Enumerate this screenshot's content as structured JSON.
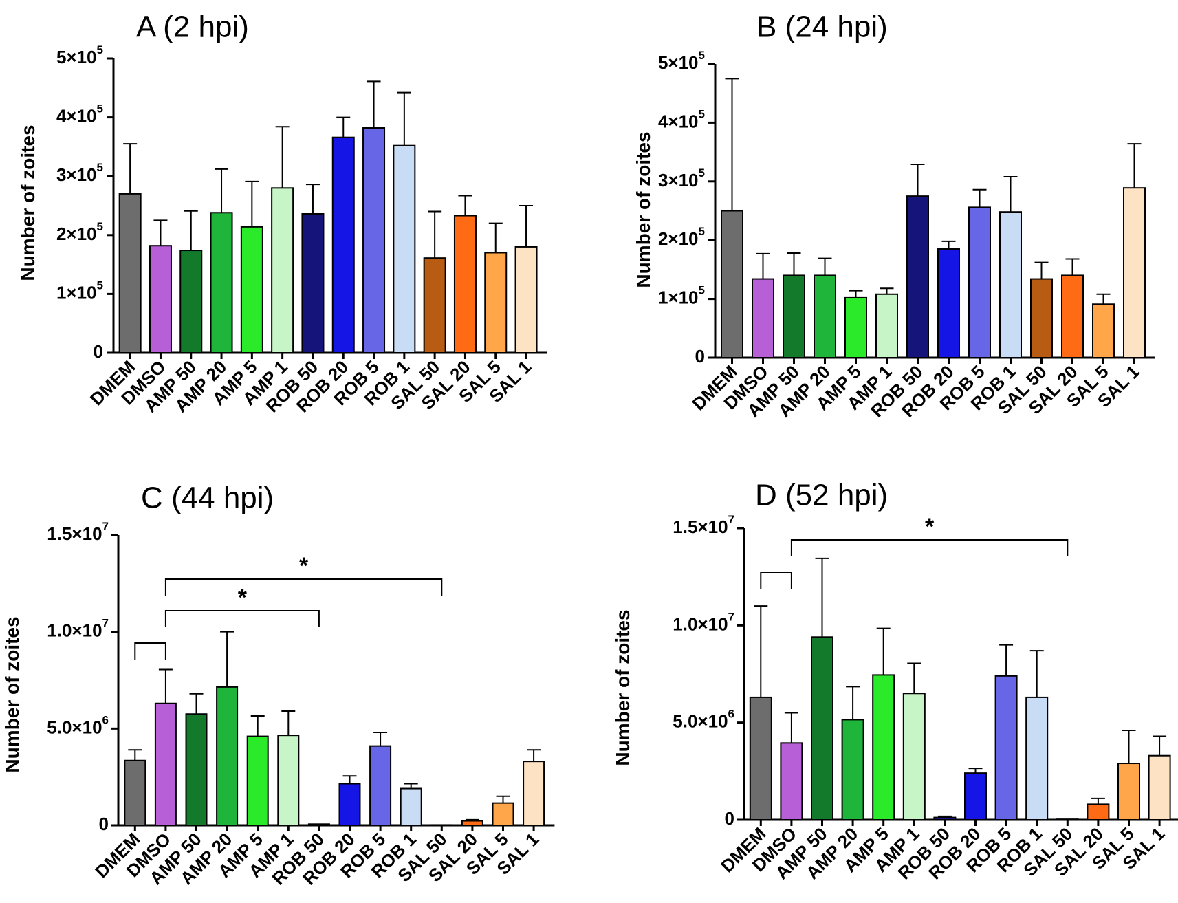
{
  "chart_data": [
    {
      "type": "bar",
      "title": "A (2 hpi)",
      "ylabel": "Number of zoites",
      "ylim": [
        0,
        500000
      ],
      "yticks": [
        0,
        100000,
        200000,
        300000,
        400000,
        500000
      ],
      "ytick_labels": [
        {
          "mantissa": "0",
          "exp": ""
        },
        {
          "mantissa": "1×10",
          "exp": "5"
        },
        {
          "mantissa": "2×10",
          "exp": "5"
        },
        {
          "mantissa": "3×10",
          "exp": "5"
        },
        {
          "mantissa": "4×10",
          "exp": "5"
        },
        {
          "mantissa": "5×10",
          "exp": "5"
        }
      ],
      "categories": [
        "DMEM",
        "DMSO",
        "AMP 50",
        "AMP 20",
        "AMP 5",
        "AMP 1",
        "ROB 50",
        "ROB 20",
        "ROB 5",
        "ROB 1",
        "SAL 50",
        "SAL 20",
        "SAL 5",
        "SAL 1"
      ],
      "values": [
        270000,
        182000,
        174000,
        238000,
        214000,
        280000,
        236000,
        366000,
        382000,
        352000,
        161000,
        233000,
        170000,
        180000
      ],
      "errors": [
        85000,
        43000,
        67000,
        74000,
        77000,
        104000,
        50000,
        34000,
        79000,
        90000,
        79000,
        34000,
        50000,
        70000
      ],
      "colors": [
        "#6d6d6d",
        "#b65fd6",
        "#127a2a",
        "#1fb53a",
        "#2aea2a",
        "#c8f5c8",
        "#14147a",
        "#1515e6",
        "#6666e6",
        "#c8dcf5",
        "#b85c14",
        "#ff6a14",
        "#ffa54a",
        "#fde2c4"
      ],
      "significance": []
    },
    {
      "type": "bar",
      "title": "B (24 hpi)",
      "ylabel": "Number of zoites",
      "ylim": [
        0,
        500000
      ],
      "yticks": [
        0,
        100000,
        200000,
        300000,
        400000,
        500000
      ],
      "ytick_labels": [
        {
          "mantissa": "0",
          "exp": ""
        },
        {
          "mantissa": "1×10",
          "exp": "5"
        },
        {
          "mantissa": "2×10",
          "exp": "5"
        },
        {
          "mantissa": "3×10",
          "exp": "5"
        },
        {
          "mantissa": "4×10",
          "exp": "5"
        },
        {
          "mantissa": "5×10",
          "exp": "5"
        }
      ],
      "categories": [
        "DMEM",
        "DMSO",
        "AMP 50",
        "AMP 20",
        "AMP 5",
        "AMP 1",
        "ROB 50",
        "ROB 20",
        "ROB 5",
        "ROB 1",
        "SAL 50",
        "SAL 20",
        "SAL 5",
        "SAL 1"
      ],
      "values": [
        250000,
        134000,
        140000,
        140000,
        102000,
        108000,
        275000,
        185000,
        256000,
        248000,
        134000,
        140000,
        91000,
        289000
      ],
      "errors": [
        225000,
        43000,
        38000,
        29000,
        12000,
        10000,
        54000,
        13000,
        30000,
        60000,
        28000,
        28000,
        17000,
        75000
      ],
      "colors": [
        "#6d6d6d",
        "#b65fd6",
        "#127a2a",
        "#1fb53a",
        "#2aea2a",
        "#c8f5c8",
        "#14147a",
        "#1515e6",
        "#6666e6",
        "#c8dcf5",
        "#b85c14",
        "#ff6a14",
        "#ffa54a",
        "#fde2c4"
      ],
      "significance": []
    },
    {
      "type": "bar",
      "title": "C (44 hpi)",
      "ylabel": "Number of zoites",
      "ylim": [
        0,
        15000000
      ],
      "yticks": [
        0,
        5000000,
        10000000,
        15000000
      ],
      "ytick_labels": [
        {
          "mantissa": "0",
          "exp": ""
        },
        {
          "mantissa": "5.0×10",
          "exp": "6"
        },
        {
          "mantissa": "1.0×10",
          "exp": "7"
        },
        {
          "mantissa": "1.5×10",
          "exp": "7"
        }
      ],
      "categories": [
        "DMEM",
        "DMSO",
        "AMP 50",
        "AMP 20",
        "AMP 5",
        "AMP 1",
        "ROB 50",
        "ROB 20",
        "ROB 5",
        "ROB 1",
        "SAL 50",
        "SAL 20",
        "SAL 5",
        "SAL 1"
      ],
      "values": [
        3350000,
        6300000,
        5750000,
        7150000,
        4600000,
        4650000,
        60000,
        2150000,
        4100000,
        1900000,
        20000,
        230000,
        1150000,
        3300000
      ],
      "errors": [
        550000,
        1750000,
        1050000,
        2850000,
        1050000,
        1250000,
        0,
        400000,
        700000,
        250000,
        0,
        60000,
        350000,
        600000
      ],
      "colors": [
        "#6d6d6d",
        "#b65fd6",
        "#127a2a",
        "#1fb53a",
        "#2aea2a",
        "#c8f5c8",
        "#14147a",
        "#1515e6",
        "#6666e6",
        "#c8dcf5",
        "#b85c14",
        "#ff6a14",
        "#ffa54a",
        "#fde2c4"
      ],
      "significance": [
        {
          "from": 0,
          "to": 1,
          "label": ""
        },
        {
          "from": 1,
          "to": 6,
          "label": "*"
        },
        {
          "from": 1,
          "to": 10,
          "label": "*"
        }
      ]
    },
    {
      "type": "bar",
      "title": "D (52 hpi)",
      "ylabel": "Number of zoites",
      "ylim": [
        0,
        15000000
      ],
      "yticks": [
        0,
        5000000,
        10000000,
        15000000
      ],
      "ytick_labels": [
        {
          "mantissa": "0",
          "exp": ""
        },
        {
          "mantissa": "5.0×10",
          "exp": "6"
        },
        {
          "mantissa": "1.0×10",
          "exp": "7"
        },
        {
          "mantissa": "1.5×10",
          "exp": "7"
        }
      ],
      "categories": [
        "DMEM",
        "DMSO",
        "AMP 50",
        "AMP 20",
        "AMP 5",
        "AMP 1",
        "ROB 50",
        "ROB 20",
        "ROB 5",
        "ROB 1",
        "SAL 50",
        "SAL 20",
        "SAL 5",
        "SAL 1"
      ],
      "values": [
        6300000,
        3950000,
        9400000,
        5150000,
        7450000,
        6500000,
        120000,
        2400000,
        7400000,
        6300000,
        30000,
        800000,
        2900000,
        3300000
      ],
      "errors": [
        4700000,
        1550000,
        4050000,
        1700000,
        2400000,
        1550000,
        60000,
        250000,
        1600000,
        2400000,
        0,
        300000,
        1700000,
        1000000
      ],
      "colors": [
        "#6d6d6d",
        "#b65fd6",
        "#127a2a",
        "#1fb53a",
        "#2aea2a",
        "#c8f5c8",
        "#14147a",
        "#1515e6",
        "#6666e6",
        "#c8dcf5",
        "#b85c14",
        "#ff6a14",
        "#ffa54a",
        "#fde2c4"
      ],
      "significance": [
        {
          "from": 0,
          "to": 1,
          "label": ""
        },
        {
          "from": 1,
          "to": 10,
          "label": "*"
        }
      ]
    }
  ]
}
